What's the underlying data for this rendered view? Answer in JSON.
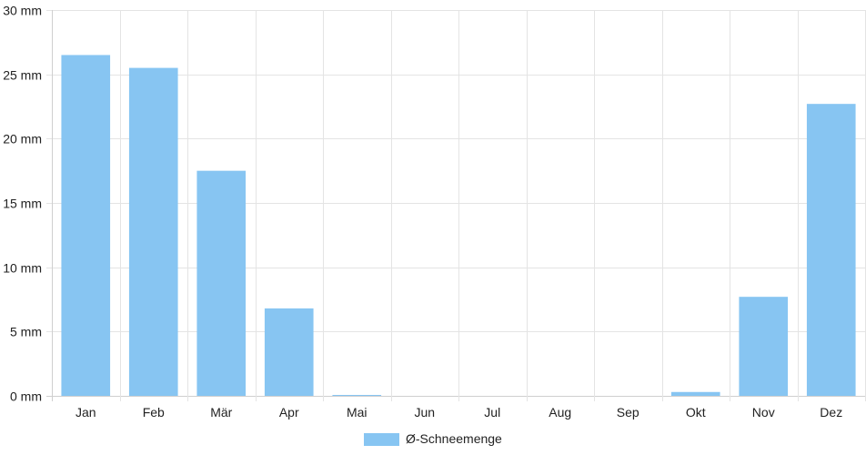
{
  "chart_data": {
    "type": "bar",
    "categories": [
      "Jan",
      "Feb",
      "Mär",
      "Apr",
      "Mai",
      "Jun",
      "Jul",
      "Aug",
      "Sep",
      "Okt",
      "Nov",
      "Dez"
    ],
    "series": [
      {
        "name": "Ø-Schneemenge",
        "values": [
          26.5,
          25.5,
          17.5,
          6.8,
          0.05,
          0,
          0,
          0,
          0,
          0.3,
          7.7,
          22.7
        ],
        "color": "#87c5f2"
      }
    ],
    "ylim": [
      0,
      30
    ],
    "yticks": [
      0,
      5,
      10,
      15,
      20,
      25,
      30
    ],
    "yunit": "mm",
    "grid": true,
    "legend": "bottom-center"
  },
  "colors": {
    "bar": "#87c5f2",
    "grid": "#e4e4e4"
  }
}
